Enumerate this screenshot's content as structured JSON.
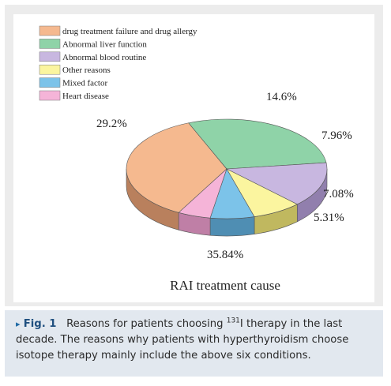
{
  "chart_data": {
    "type": "pie",
    "style": "3d",
    "title": "RAI treatment cause",
    "legend_position": "top-left",
    "categories": [
      "drug treatment failure and drug allergy",
      "Abnormal liver function",
      "Abnormal blood routine",
      "Other reasons",
      "Mixed factor",
      "Heart disease"
    ],
    "values": [
      35.84,
      29.2,
      14.6,
      7.96,
      7.08,
      5.31
    ],
    "value_labels": [
      "35.84%",
      "29.2%",
      "14.6%",
      "7.96%",
      "7.08%",
      "5.31%"
    ],
    "colors": [
      "#f5b98f",
      "#8fd3a8",
      "#c8b7e0",
      "#fbf59f",
      "#7cc3e9",
      "#f5b4d8"
    ],
    "side_colors": [
      "#b9805d",
      "#5f9f78",
      "#917fad",
      "#c0b85f",
      "#4f8eb3",
      "#bf7fa6"
    ]
  },
  "caption": {
    "marker": "▸",
    "label": "Fig. 1",
    "text_before_sup": "Reasons for patients choosing ",
    "sup": "131",
    "text_after_sup": "I therapy in the last decade. The reasons why patients with hyperthyroidism choose isotope therapy mainly include the above six conditions."
  }
}
